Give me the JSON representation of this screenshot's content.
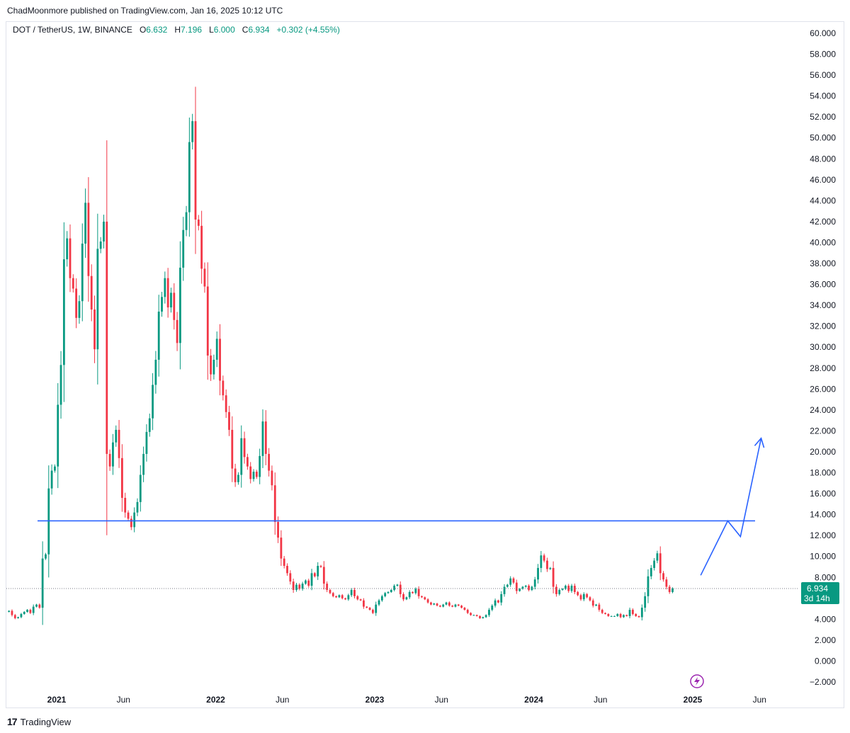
{
  "publisher_line": "ChadMoonmore published on TradingView.com, Jan 16, 2025 10:12 UTC",
  "legend": {
    "symbol": "DOT / TetherUS, 1W, BINANCE",
    "o_label": "O",
    "o_value": "6.632",
    "h_label": "H",
    "h_value": "7.196",
    "l_label": "L",
    "l_value": "6.000",
    "c_label": "C",
    "c_value": "6.934",
    "change": "+0.302 (+4.55%)"
  },
  "price_badge": {
    "price": "6.934",
    "countdown": "3d 14h"
  },
  "footer": {
    "brand": "TradingView",
    "logo_mark": "17"
  },
  "colors": {
    "up": "#089981",
    "down": "#f23645",
    "level_line": "#2962ff",
    "arrow": "#2962ff",
    "badge": "#089981"
  },
  "icons": {
    "lightning": "lightning-bolt-icon"
  },
  "chart_data": {
    "type": "candlestick",
    "symbol": "DOT / TetherUS",
    "interval": "1W",
    "exchange": "BINANCE",
    "ylim": [
      -2,
      60
    ],
    "y_ticks": [
      "60.000",
      "58.000",
      "56.000",
      "54.000",
      "52.000",
      "50.000",
      "48.000",
      "46.000",
      "44.000",
      "42.000",
      "40.000",
      "38.000",
      "36.000",
      "34.000",
      "32.000",
      "30.000",
      "28.000",
      "26.000",
      "24.000",
      "22.000",
      "20.000",
      "18.000",
      "16.000",
      "14.000",
      "12.000",
      "10.000",
      "8.000",
      "6.000",
      "4.000",
      "2.000",
      "0.000",
      "−2.000"
    ],
    "x_ticks": [
      {
        "label": "2021",
        "bold": true,
        "t": 2021.0
      },
      {
        "label": "Jun",
        "bold": false,
        "t": 2021.42
      },
      {
        "label": "2022",
        "bold": true,
        "t": 2022.0
      },
      {
        "label": "Jun",
        "bold": false,
        "t": 2022.42
      },
      {
        "label": "2023",
        "bold": true,
        "t": 2023.0
      },
      {
        "label": "Jun",
        "bold": false,
        "t": 2023.42
      },
      {
        "label": "2024",
        "bold": true,
        "t": 2024.0
      },
      {
        "label": "Jun",
        "bold": false,
        "t": 2024.42
      },
      {
        "label": "2025",
        "bold": true,
        "t": 2025.0
      },
      {
        "label": "Jun",
        "bold": false,
        "t": 2025.42
      }
    ],
    "horizontal_level": 13.4,
    "last_close": 6.934,
    "projection_arrow": [
      [
        2025.05,
        8.2
      ],
      [
        2025.22,
        13.4
      ],
      [
        2025.3,
        11.9
      ],
      [
        2025.43,
        21.3
      ]
    ],
    "closes_weekly_from_2020_70": [
      4.8,
      4.4,
      4.1,
      4.2,
      4.5,
      4.7,
      4.9,
      4.6,
      5.2,
      5.4,
      5.1,
      9.8,
      10.2,
      16.5,
      18.2,
      18.6,
      24.5,
      28.3,
      38.4,
      40.4,
      36.6,
      35.6,
      32.8,
      34.4,
      39.9,
      43.8,
      36.8,
      33.6,
      29.8,
      39.4,
      40.1,
      42.0,
      19.8,
      18.6,
      20.9,
      22.1,
      19.4,
      15.6,
      14.2,
      13.6,
      12.8,
      14.2,
      15.2,
      17.8,
      19.8,
      21.9,
      23.2,
      26.4,
      28.8,
      33.4,
      34.8,
      36.6,
      33.8,
      35.2,
      32.6,
      30.4,
      37.6,
      41.2,
      42.9,
      49.6,
      51.6,
      42.2,
      41.6,
      37.5,
      35.8,
      29.2,
      27.4,
      28.8,
      30.8,
      26.8,
      25.4,
      23.8,
      22.1,
      18.4,
      17.1,
      17.8,
      21.3,
      19.5,
      18.6,
      17.4,
      18.1,
      17.6,
      19.6,
      22.9,
      19.8,
      18.2,
      16.8,
      13.3,
      11.8,
      9.8,
      9.1,
      8.4,
      7.6,
      6.8,
      7.3,
      6.9,
      7.4,
      7.7,
      7.2,
      8.4,
      8.1,
      9.1,
      9.0,
      7.4,
      6.8,
      6.5,
      6.2,
      6.1,
      6.3,
      6.0,
      5.9,
      6.3,
      6.8,
      6.2,
      5.9,
      5.8,
      5.2,
      5.1,
      4.9,
      4.6,
      5.4,
      5.8,
      6.2,
      6.5,
      6.6,
      6.8,
      7.2,
      7.3,
      6.4,
      5.9,
      6.1,
      6.6,
      6.5,
      6.9,
      6.2,
      6.1,
      5.9,
      5.6,
      5.4,
      5.5,
      5.3,
      5.2,
      5.4,
      5.6,
      5.3,
      5.2,
      5.4,
      5.3,
      5.1,
      4.9,
      4.6,
      4.4,
      4.4,
      4.3,
      4.1,
      4.2,
      4.4,
      4.9,
      5.3,
      5.8,
      5.6,
      6.4,
      7.1,
      7.3,
      7.9,
      7.5,
      6.7,
      6.9,
      7.1,
      7.2,
      6.8,
      7.1,
      7.8,
      8.9,
      10.1,
      9.6,
      8.8,
      8.9,
      7.1,
      6.4,
      6.8,
      6.9,
      7.2,
      6.7,
      7.2,
      6.6,
      6.3,
      5.9,
      6.4,
      6.1,
      5.8,
      5.3,
      5.4,
      4.9,
      4.6,
      4.5,
      4.3,
      4.3,
      4.3,
      4.5,
      4.2,
      4.4,
      4.3,
      4.9,
      4.5,
      4.3,
      4.2,
      5.1,
      6.2,
      8.1,
      8.9,
      9.6,
      10.3,
      8.4,
      7.8,
      7.1,
      6.6,
      6.934
    ]
  }
}
